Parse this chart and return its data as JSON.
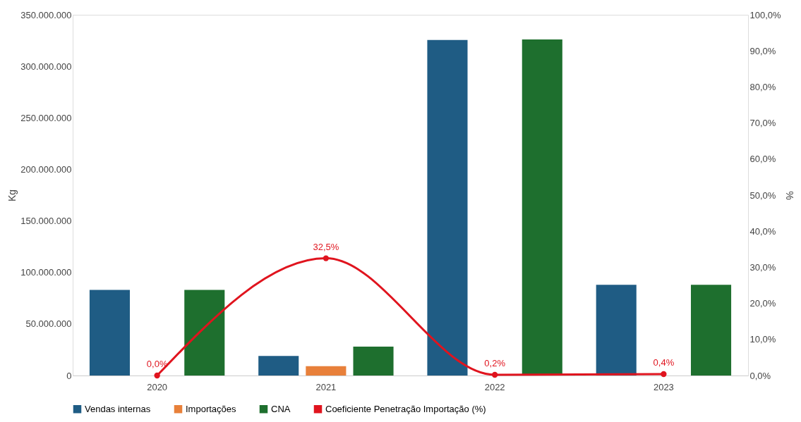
{
  "chart_data": {
    "type": "bar",
    "ylabel": "Kg",
    "y2label": "%",
    "categories": [
      "2020",
      "2021",
      "2022",
      "2023"
    ],
    "series": [
      {
        "name": "Vendas internas",
        "color": "#1f5c84",
        "values": [
          83000000,
          19000000,
          325500000,
          88000000
        ]
      },
      {
        "name": "Importações",
        "color": "#e8803a",
        "values": [
          0,
          9000000,
          null,
          null
        ]
      },
      {
        "name": "CNA",
        "color": "#1e6f2e",
        "values": [
          83000000,
          28000000,
          326000000,
          88000000
        ]
      },
      {
        "name": "Coeficiente Penetração Importação (%)",
        "color": "#e0141e",
        "type": "line",
        "axis": "y2",
        "marker": "circle",
        "values": [
          0.0,
          32.5,
          0.2,
          0.4
        ],
        "value_labels": [
          "0,0%",
          "32,5%",
          "0,2%",
          "0,4%"
        ]
      }
    ],
    "ylim": [
      0,
      350000000
    ],
    "yticks": [
      0,
      {
        "value": 50000000,
        "label": "50.000.000"
      },
      {
        "value": 100000000,
        "label": "100.000.000"
      },
      {
        "value": 150000000,
        "label": "150.000.000"
      },
      {
        "value": 200000000,
        "label": "200.000.000"
      },
      {
        "value": 250000000,
        "label": "250.000.000"
      },
      {
        "value": 300000000,
        "label": "300.000.000"
      },
      {
        "value": 350000000,
        "label": "350.000.000"
      }
    ],
    "y2lim": [
      0,
      100
    ],
    "y2ticks": [
      {
        "value": 0,
        "label": "0,0%"
      },
      {
        "value": 10,
        "label": "10,0%"
      },
      {
        "value": 20,
        "label": "20,0%"
      },
      {
        "value": 30,
        "label": "30,0%"
      },
      {
        "value": 40,
        "label": "40,0%"
      },
      {
        "value": 50,
        "label": "50,0%"
      },
      {
        "value": 60,
        "label": "60,0%"
      },
      {
        "value": 70,
        "label": "70,0%"
      },
      {
        "value": 80,
        "label": "80,0%"
      },
      {
        "value": 90,
        "label": "90,0%"
      },
      {
        "value": 100,
        "label": "100,0%"
      }
    ],
    "grid": false,
    "legend": "bottom"
  }
}
